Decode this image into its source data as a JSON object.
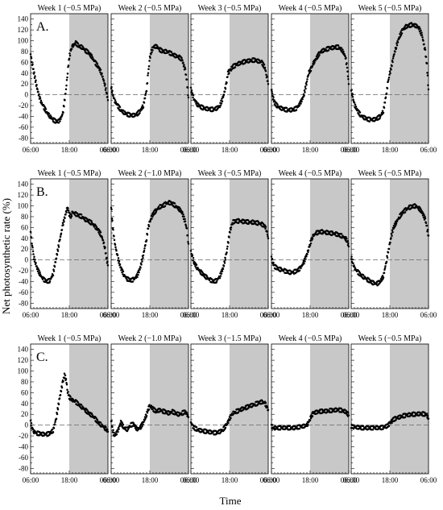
{
  "figure": {
    "ylabel": "Net photosynthetic rate (%)",
    "xlabel": "Time"
  },
  "chart_data": [
    {
      "type": "scatter",
      "row_label": "A.",
      "ylim": [
        -90,
        150
      ],
      "yticks": [
        -80,
        -60,
        -40,
        -20,
        0,
        20,
        40,
        60,
        80,
        100,
        120,
        140
      ],
      "xlim": [
        6,
        30
      ],
      "xtick_labels": [
        "06:00",
        "18:00",
        "06:00"
      ],
      "shaded_period": [
        18,
        30
      ],
      "zero_line": "dashed",
      "panels": [
        {
          "title": "Week 1 (−0.5 MPa)",
          "x": [
            6,
            6.5,
            7,
            8,
            9,
            10,
            11,
            12,
            13,
            14,
            15,
            16,
            17,
            17.5,
            18,
            18.5,
            19,
            20,
            21,
            22,
            23,
            24,
            25,
            26,
            27,
            28,
            29,
            29.5,
            30
          ],
          "y": [
            75,
            58,
            42,
            12,
            -10,
            -22,
            -32,
            -40,
            -46,
            -50,
            -48,
            -35,
            10,
            42,
            70,
            82,
            90,
            96,
            90,
            88,
            82,
            78,
            70,
            60,
            52,
            40,
            20,
            5,
            -10
          ]
        },
        {
          "title": "Week 2 (−0.5 MPa)",
          "x": [
            6,
            6.5,
            7,
            8,
            9,
            10,
            11,
            12,
            13,
            14,
            15,
            16,
            17,
            17.5,
            18,
            18.5,
            19,
            20,
            21,
            22,
            23,
            24,
            25,
            26,
            27,
            28,
            29,
            29.5,
            30
          ],
          "y": [
            15,
            0,
            -10,
            -20,
            -28,
            -33,
            -36,
            -38,
            -38,
            -36,
            -30,
            -20,
            10,
            40,
            68,
            80,
            88,
            90,
            84,
            80,
            80,
            78,
            75,
            72,
            70,
            65,
            45,
            25,
            -5
          ]
        },
        {
          "title": "Week 3 (−0.5 MPa)",
          "x": [
            6,
            6.5,
            7,
            8,
            9,
            10,
            11,
            12,
            13,
            14,
            15,
            16,
            17,
            17.5,
            18,
            18.5,
            19,
            20,
            21,
            22,
            23,
            24,
            25,
            26,
            27,
            28,
            29,
            29.5,
            30
          ],
          "y": [
            10,
            0,
            -8,
            -18,
            -22,
            -25,
            -26,
            -27,
            -27,
            -25,
            -20,
            -5,
            20,
            40,
            45,
            48,
            52,
            55,
            58,
            60,
            62,
            63,
            64,
            64,
            62,
            60,
            50,
            35,
            20
          ]
        },
        {
          "title": "Week 4 (−0.5 MPa)",
          "x": [
            6,
            6.5,
            7,
            8,
            9,
            10,
            11,
            12,
            13,
            14,
            15,
            16,
            17,
            17.5,
            18,
            18.5,
            19,
            20,
            21,
            22,
            23,
            24,
            25,
            26,
            27,
            28,
            29,
            29.5,
            30
          ],
          "y": [
            10,
            -5,
            -15,
            -22,
            -25,
            -27,
            -28,
            -28,
            -27,
            -24,
            -15,
            -2,
            25,
            40,
            45,
            50,
            58,
            68,
            78,
            82,
            84,
            86,
            87,
            88,
            88,
            82,
            70,
            50,
            20
          ]
        },
        {
          "title": "Week 5 (−0.5 MPa)",
          "x": [
            6,
            6.5,
            7,
            8,
            9,
            10,
            11,
            12,
            13,
            14,
            15,
            16,
            17,
            17.5,
            18,
            18.5,
            19,
            20,
            21,
            22,
            23,
            24,
            25,
            26,
            27,
            28,
            29,
            29.5,
            30
          ],
          "y": [
            10,
            -5,
            -18,
            -30,
            -38,
            -42,
            -45,
            -46,
            -46,
            -44,
            -40,
            -30,
            5,
            25,
            40,
            52,
            68,
            90,
            108,
            120,
            126,
            128,
            130,
            128,
            124,
            110,
            80,
            55,
            10
          ]
        }
      ]
    },
    {
      "type": "scatter",
      "row_label": "B.",
      "ylim": [
        -90,
        150
      ],
      "yticks": [
        -80,
        -60,
        -40,
        -20,
        0,
        20,
        40,
        60,
        80,
        100,
        120,
        140
      ],
      "xlim": [
        6,
        30
      ],
      "xtick_labels": [
        "06:00",
        "18:00",
        "06:00"
      ],
      "shaded_period": [
        18,
        30
      ],
      "zero_line": "dashed",
      "panels": [
        {
          "title": "Week 1 (−0.5 MPa)",
          "x": [
            6,
            6.5,
            7,
            8,
            9,
            10,
            11,
            12,
            13,
            14,
            15,
            16,
            17,
            17.5,
            18,
            18.5,
            19,
            20,
            21,
            22,
            23,
            24,
            25,
            26,
            27,
            28,
            29,
            29.5,
            30
          ],
          "y": [
            50,
            28,
            5,
            -15,
            -28,
            -36,
            -40,
            -38,
            -25,
            5,
            35,
            65,
            88,
            98,
            85,
            80,
            88,
            85,
            82,
            80,
            75,
            72,
            68,
            62,
            55,
            45,
            25,
            5,
            -10
          ]
        },
        {
          "title": "Week 2 (−1.0 MPa)",
          "x": [
            6,
            6.5,
            7,
            8,
            9,
            10,
            11,
            12,
            13,
            14,
            15,
            16,
            17,
            17.5,
            18,
            18.5,
            19,
            20,
            21,
            22,
            23,
            24,
            25,
            26,
            27,
            28,
            29,
            29.5,
            30
          ],
          "y": [
            100,
            60,
            35,
            5,
            -15,
            -28,
            -35,
            -38,
            -36,
            -30,
            -15,
            10,
            40,
            60,
            70,
            78,
            85,
            92,
            98,
            100,
            104,
            106,
            104,
            100,
            95,
            88,
            70,
            55,
            30
          ]
        },
        {
          "title": "Week 3 (−0.5 MPa)",
          "x": [
            6,
            6.5,
            7,
            8,
            9,
            10,
            11,
            12,
            13,
            14,
            15,
            16,
            17,
            17.5,
            18,
            18.5,
            19,
            20,
            21,
            22,
            23,
            24,
            25,
            26,
            27,
            28,
            29,
            29.5,
            30
          ],
          "y": [
            15,
            5,
            -5,
            -15,
            -22,
            -28,
            -33,
            -37,
            -40,
            -38,
            -30,
            -15,
            10,
            30,
            50,
            62,
            70,
            72,
            72,
            71,
            71,
            70,
            70,
            69,
            68,
            66,
            62,
            55,
            40
          ]
        },
        {
          "title": "Week 4 (−0.5 MPa)",
          "x": [
            6,
            6.5,
            7,
            8,
            9,
            10,
            11,
            12,
            13,
            14,
            15,
            16,
            17,
            17.5,
            18,
            18.5,
            19,
            20,
            21,
            22,
            23,
            24,
            25,
            26,
            27,
            28,
            29,
            29.5,
            30
          ],
          "y": [
            5,
            -5,
            -12,
            -16,
            -18,
            -20,
            -22,
            -23,
            -22,
            -20,
            -15,
            -5,
            10,
            20,
            30,
            38,
            45,
            50,
            52,
            52,
            51,
            50,
            49,
            48,
            46,
            44,
            40,
            35,
            25
          ]
        },
        {
          "title": "Week 5 (−0.5 MPa)",
          "x": [
            6,
            6.5,
            7,
            8,
            9,
            10,
            11,
            12,
            13,
            14,
            15,
            16,
            17,
            17.5,
            18,
            18.5,
            19,
            20,
            21,
            22,
            23,
            24,
            25,
            26,
            27,
            28,
            29,
            29.5,
            30
          ],
          "y": [
            5,
            -5,
            -15,
            -22,
            -28,
            -32,
            -36,
            -40,
            -43,
            -44,
            -40,
            -30,
            0,
            15,
            30,
            45,
            58,
            70,
            80,
            88,
            93,
            97,
            99,
            100,
            96,
            88,
            75,
            60,
            45
          ]
        }
      ]
    },
    {
      "type": "scatter",
      "row_label": "C.",
      "ylim": [
        -90,
        150
      ],
      "yticks": [
        -80,
        -60,
        -40,
        -20,
        0,
        20,
        40,
        60,
        80,
        100,
        120,
        140
      ],
      "xlim": [
        6,
        30
      ],
      "xtick_labels": [
        "06:00",
        "18:00",
        "06:00"
      ],
      "shaded_period": [
        18,
        30
      ],
      "zero_line": "dashed",
      "panels": [
        {
          "title": "Week 1 (−0.5 MPa)",
          "x": [
            6,
            6.5,
            7,
            8,
            9,
            10,
            11,
            12,
            13,
            14,
            15,
            16,
            16.5,
            17,
            17.5,
            18,
            18.5,
            19,
            20,
            21,
            22,
            23,
            24,
            25,
            26,
            27,
            28,
            29,
            29.5,
            30
          ],
          "y": [
            5,
            -5,
            -12,
            -15,
            -16,
            -17,
            -17,
            -15,
            -10,
            15,
            50,
            80,
            92,
            85,
            62,
            52,
            48,
            46,
            43,
            38,
            33,
            28,
            22,
            18,
            12,
            5,
            0,
            -5,
            -8,
            -12
          ]
        },
        {
          "title": "Week 2 (−1.0 MPa)",
          "x": [
            6,
            6.5,
            7,
            8,
            9,
            10,
            11,
            12,
            13,
            14,
            15,
            16,
            17,
            17.5,
            18,
            18.5,
            19,
            20,
            21,
            22,
            23,
            24,
            25,
            26,
            27,
            28,
            29,
            29.5,
            30
          ],
          "y": [
            10,
            -10,
            -20,
            -12,
            5,
            -5,
            -8,
            0,
            2,
            -8,
            -5,
            5,
            20,
            30,
            35,
            33,
            30,
            25,
            28,
            26,
            24,
            22,
            25,
            22,
            20,
            22,
            25,
            20,
            15
          ]
        },
        {
          "title": "Week 3 (−1.5 MPa)",
          "x": [
            6,
            6.5,
            7,
            8,
            9,
            10,
            11,
            12,
            13,
            14,
            15,
            16,
            17,
            17.5,
            18,
            18.5,
            19,
            20,
            21,
            22,
            23,
            24,
            25,
            26,
            27,
            28,
            29,
            29.5,
            30
          ],
          "y": [
            5,
            -2,
            -5,
            -8,
            -10,
            -11,
            -12,
            -13,
            -14,
            -14,
            -12,
            -8,
            0,
            5,
            12,
            18,
            22,
            25,
            27,
            30,
            32,
            35,
            37,
            39,
            41,
            43,
            40,
            35,
            28
          ]
        },
        {
          "title": "Week 4 (−0.5 MPa)",
          "x": [
            6,
            6.5,
            7,
            8,
            9,
            10,
            11,
            12,
            13,
            14,
            15,
            16,
            17,
            17.5,
            18,
            18.5,
            19,
            20,
            21,
            22,
            23,
            24,
            25,
            26,
            27,
            28,
            29,
            29.5,
            30
          ],
          "y": [
            -2,
            -4,
            -5,
            -5,
            -5,
            -5,
            -5,
            -5,
            -5,
            -4,
            -3,
            -2,
            0,
            5,
            12,
            18,
            22,
            24,
            25,
            26,
            26,
            27,
            27,
            28,
            28,
            27,
            25,
            22,
            18
          ]
        },
        {
          "title": "Week 5 (−0.5 MPa)",
          "x": [
            6,
            6.5,
            7,
            8,
            9,
            10,
            11,
            12,
            13,
            14,
            15,
            16,
            17,
            17.5,
            18,
            18.5,
            19,
            20,
            21,
            22,
            23,
            24,
            25,
            26,
            27,
            28,
            29,
            29.5,
            30
          ],
          "y": [
            -2,
            -3,
            -4,
            -4,
            -5,
            -5,
            -5,
            -5,
            -5,
            -5,
            -5,
            -4,
            -2,
            0,
            3,
            6,
            10,
            13,
            15,
            17,
            18,
            19,
            20,
            20,
            21,
            21,
            20,
            18,
            12
          ]
        }
      ]
    }
  ]
}
